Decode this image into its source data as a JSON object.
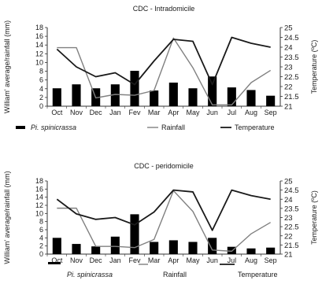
{
  "chart_data": [
    {
      "type": "bar",
      "title": "CDC - Intradomicile",
      "categories": [
        "Oct",
        "Nov",
        "Dec",
        "Jan",
        "Fev",
        "Mar",
        "Apr",
        "May",
        "Jun",
        "Jul",
        "Aug",
        "Sep"
      ],
      "ylabel": "William' average/rainfall (mm)",
      "y2label": "Temperature (ºC)",
      "ylim": [
        0,
        18
      ],
      "y2lim": [
        21,
        25
      ],
      "yticks": [
        "0",
        "2",
        "4",
        "6",
        "8",
        "10",
        "12",
        "14",
        "16",
        "18"
      ],
      "y2ticks": [
        "21",
        "21.5",
        "22",
        "22.5",
        "23",
        "23.5",
        "24",
        "24.5",
        "25"
      ],
      "series": [
        {
          "name": "Pi. spinicrassa",
          "kind": "bar",
          "axis": "left",
          "color": "#000000",
          "values": [
            4.1,
            5.0,
            4.1,
            5.0,
            8.1,
            3.6,
            5.4,
            4.1,
            6.8,
            4.3,
            3.7,
            2.4
          ]
        },
        {
          "name": "Rainfall",
          "kind": "line",
          "axis": "left",
          "color": "#808080",
          "values": [
            13.4,
            13.4,
            1.9,
            2.7,
            2.5,
            3.6,
            15.6,
            8.8,
            0.3,
            0.3,
            5.4,
            8.2
          ]
        },
        {
          "name": "Temperature",
          "kind": "line",
          "axis": "right",
          "color": "#1a1a1a",
          "values": [
            23.9,
            23.0,
            22.5,
            22.7,
            22.1,
            23.3,
            24.4,
            24.3,
            22.1,
            24.5,
            24.2,
            24.0
          ]
        }
      ],
      "legend": {
        "placement": "bottom"
      }
    },
    {
      "type": "bar",
      "title": "CDC - peridomicile",
      "categories": [
        "Oct",
        "Nov",
        "Dec",
        "Jan",
        "Fev",
        "Mar",
        "Apr",
        "May",
        "Jun",
        "Jul",
        "Aug",
        "Sep"
      ],
      "ylabel": "William' average/rainfall (mm)",
      "y2label": "Temperature (ºC)",
      "ylim": [
        0,
        18
      ],
      "y2lim": [
        21,
        25
      ],
      "yticks": [
        "0",
        "2",
        "4",
        "6",
        "8",
        "10",
        "12",
        "14",
        "16",
        "18"
      ],
      "y2ticks": [
        "21",
        "21.5",
        "22",
        "22.5",
        "23",
        "23.5",
        "24",
        "24.5",
        "25"
      ],
      "series": [
        {
          "name": "Pi. spinicrassa",
          "kind": "bar",
          "axis": "left",
          "color": "#000000",
          "values": [
            4.0,
            2.5,
            1.9,
            4.3,
            9.8,
            3.0,
            3.4,
            3.0,
            4.0,
            1.8,
            1.4,
            1.6
          ]
        },
        {
          "name": "Rainfall",
          "kind": "line",
          "axis": "left",
          "color": "#808080",
          "values": [
            11.3,
            11.3,
            1.9,
            1.9,
            1.6,
            3.6,
            15.6,
            10.5,
            1.0,
            0.7,
            5.0,
            7.8
          ]
        },
        {
          "name": "Temperature",
          "kind": "line",
          "axis": "right",
          "color": "#1a1a1a",
          "values": [
            24.0,
            23.2,
            22.9,
            23.0,
            22.6,
            23.3,
            24.5,
            24.4,
            22.3,
            24.5,
            24.2,
            24.0
          ]
        }
      ],
      "legend": {
        "placement": "bottom"
      }
    }
  ]
}
